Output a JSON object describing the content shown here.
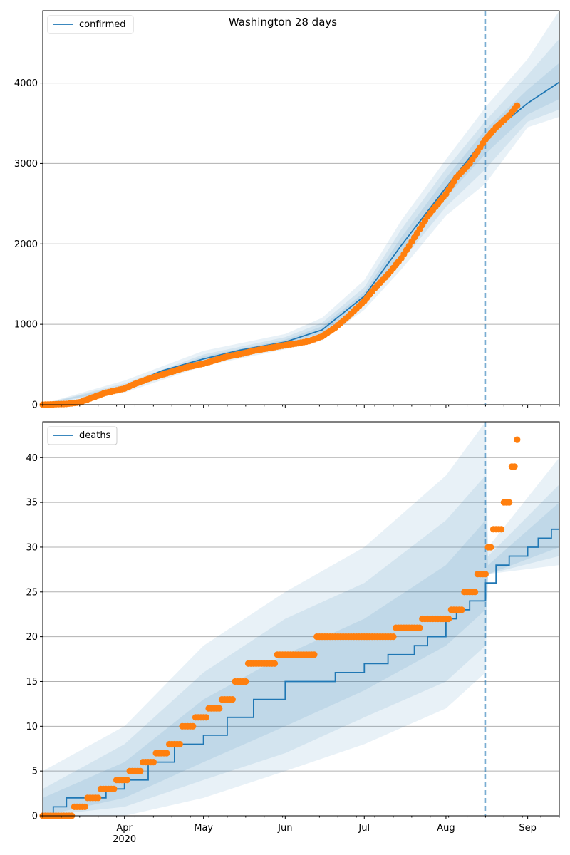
{
  "chart_data": [
    {
      "type": "line",
      "title": "Washington 28 days",
      "x_range": [
        "2020-03-01",
        "2020-09-13"
      ],
      "ylim": [
        0,
        4900
      ],
      "yticks": [
        0,
        1000,
        2000,
        3000,
        4000
      ],
      "grid": "horizontal",
      "legend_placement": "top-left",
      "series": [
        {
          "name": "confirmed",
          "kind": "model-line",
          "color": "#1f77b4",
          "x": [
            "2020-03-01",
            "2020-03-15",
            "2020-04-01",
            "2020-04-15",
            "2020-05-01",
            "2020-05-15",
            "2020-06-01",
            "2020-06-15",
            "2020-07-01",
            "2020-07-15",
            "2020-08-01",
            "2020-08-16",
            "2020-09-01",
            "2020-09-13"
          ],
          "y": [
            5,
            40,
            220,
            420,
            570,
            680,
            780,
            930,
            1350,
            1980,
            2700,
            3320,
            3750,
            4010
          ]
        },
        {
          "kind": "observed",
          "color": "#ff7f0e",
          "x": [
            "2020-03-01",
            "2020-03-10",
            "2020-03-15",
            "2020-03-20",
            "2020-03-25",
            "2020-04-01",
            "2020-04-05",
            "2020-04-10",
            "2020-04-15",
            "2020-04-20",
            "2020-04-25",
            "2020-05-01",
            "2020-05-05",
            "2020-05-10",
            "2020-05-15",
            "2020-05-20",
            "2020-05-25",
            "2020-06-01",
            "2020-06-05",
            "2020-06-10",
            "2020-06-15",
            "2020-06-20",
            "2020-06-25",
            "2020-07-01",
            "2020-07-05",
            "2020-07-10",
            "2020-07-15",
            "2020-07-20",
            "2020-07-25",
            "2020-08-01",
            "2020-08-05",
            "2020-08-10",
            "2020-08-16",
            "2020-08-20",
            "2020-08-25",
            "2020-08-28"
          ],
          "y": [
            0,
            10,
            30,
            90,
            150,
            200,
            260,
            320,
            370,
            420,
            470,
            510,
            550,
            600,
            630,
            670,
            700,
            740,
            760,
            790,
            850,
            960,
            1100,
            1290,
            1450,
            1620,
            1820,
            2080,
            2340,
            2620,
            2830,
            3000,
            3300,
            3450,
            3600,
            3720
          ]
        }
      ],
      "bands": [
        {
          "x": [
            "2020-03-01",
            "2020-04-01",
            "2020-05-01",
            "2020-06-01",
            "2020-06-15",
            "2020-07-01",
            "2020-07-15",
            "2020-08-01",
            "2020-08-16",
            "2020-09-01",
            "2020-09-13"
          ],
          "lower": [
            0,
            150,
            480,
            690,
            800,
            1180,
            1680,
            2350,
            2750,
            3450,
            3580
          ],
          "upper": [
            10,
            300,
            670,
            880,
            1080,
            1550,
            2290,
            3050,
            3700,
            4300,
            4900
          ]
        },
        {
          "x": [
            "2020-03-01",
            "2020-04-01",
            "2020-05-01",
            "2020-06-01",
            "2020-06-15",
            "2020-07-01",
            "2020-07-15",
            "2020-08-01",
            "2020-08-16",
            "2020-09-01",
            "2020-09-13"
          ],
          "lower": [
            2,
            175,
            515,
            725,
            845,
            1240,
            1780,
            2460,
            2930,
            3520,
            3670
          ],
          "upper": [
            8,
            265,
            625,
            840,
            1020,
            1460,
            2180,
            2930,
            3530,
            4100,
            4550
          ]
        },
        {
          "x": [
            "2020-03-01",
            "2020-04-01",
            "2020-05-01",
            "2020-06-01",
            "2020-06-15",
            "2020-07-01",
            "2020-07-15",
            "2020-08-01",
            "2020-08-16",
            "2020-09-01",
            "2020-09-13"
          ],
          "lower": [
            4,
            198,
            545,
            755,
            890,
            1300,
            1880,
            2580,
            3120,
            3610,
            3800
          ],
          "upper": [
            7,
            242,
            600,
            810,
            975,
            1400,
            2080,
            2820,
            3420,
            3920,
            4250
          ]
        }
      ],
      "vline": {
        "x": "2020-08-16",
        "style": "dashed"
      }
    },
    {
      "type": "line",
      "x_range": [
        "2020-03-01",
        "2020-09-13"
      ],
      "ylim": [
        0,
        44
      ],
      "yticks": [
        0,
        5,
        10,
        15,
        20,
        25,
        30,
        35,
        40
      ],
      "xtick_labels": [
        "Apr",
        "May",
        "Jun",
        "Jul",
        "Aug",
        "Sep"
      ],
      "xtick_year": "2020",
      "grid": "horizontal",
      "legend_placement": "top-left",
      "series": [
        {
          "name": "deaths",
          "kind": "model-step",
          "color": "#1f77b4",
          "x": [
            "2020-03-01",
            "2020-03-05",
            "2020-03-10",
            "2020-03-25",
            "2020-04-01",
            "2020-04-10",
            "2020-04-20",
            "2020-05-01",
            "2020-05-10",
            "2020-05-20",
            "2020-06-01",
            "2020-06-10",
            "2020-06-20",
            "2020-07-01",
            "2020-07-10",
            "2020-07-20",
            "2020-07-25",
            "2020-08-01",
            "2020-08-05",
            "2020-08-10",
            "2020-08-16",
            "2020-08-20",
            "2020-08-25",
            "2020-09-01",
            "2020-09-05",
            "2020-09-10",
            "2020-09-13"
          ],
          "y": [
            0,
            1,
            2,
            3,
            4,
            6,
            8,
            9,
            11,
            13,
            15,
            15,
            16,
            17,
            18,
            19,
            20,
            22,
            23,
            24,
            26,
            28,
            29,
            30,
            31,
            32,
            32
          ]
        },
        {
          "kind": "observed",
          "color": "#ff7f0e",
          "x": [
            "2020-03-01",
            "2020-03-10",
            "2020-03-15",
            "2020-03-20",
            "2020-03-25",
            "2020-04-01",
            "2020-04-05",
            "2020-04-10",
            "2020-04-15",
            "2020-04-20",
            "2020-04-25",
            "2020-05-01",
            "2020-05-05",
            "2020-05-10",
            "2020-05-15",
            "2020-05-20",
            "2020-05-25",
            "2020-06-01",
            "2020-06-05",
            "2020-06-10",
            "2020-06-15",
            "2020-06-20",
            "2020-06-25",
            "2020-07-01",
            "2020-07-05",
            "2020-07-10",
            "2020-07-15",
            "2020-07-20",
            "2020-07-25",
            "2020-08-01",
            "2020-08-05",
            "2020-08-10",
            "2020-08-16",
            "2020-08-18",
            "2020-08-20",
            "2020-08-25",
            "2020-08-27",
            "2020-08-28"
          ],
          "y": [
            0,
            0,
            1,
            2,
            3,
            4,
            5,
            6,
            7,
            8,
            10,
            11,
            12,
            13,
            15,
            17,
            17,
            18,
            18,
            18,
            20,
            20,
            20,
            20,
            20,
            20,
            21,
            21,
            22,
            22,
            23,
            25,
            27,
            30,
            32,
            35,
            39,
            42
          ]
        }
      ],
      "bands": [
        {
          "x": [
            "2020-03-01",
            "2020-04-01",
            "2020-05-01",
            "2020-06-01",
            "2020-07-01",
            "2020-08-01",
            "2020-08-16",
            "2020-08-17",
            "2020-09-13"
          ],
          "lower": [
            0,
            0,
            2,
            5,
            8,
            12,
            16,
            27,
            28
          ],
          "upper": [
            5,
            10,
            19,
            25,
            30,
            38,
            44,
            30,
            40
          ]
        },
        {
          "x": [
            "2020-03-01",
            "2020-04-01",
            "2020-05-01",
            "2020-06-01",
            "2020-07-01",
            "2020-08-01",
            "2020-08-16",
            "2020-08-17",
            "2020-09-13"
          ],
          "lower": [
            0,
            1,
            4,
            7,
            11,
            15,
            19,
            27,
            29
          ],
          "upper": [
            3,
            8,
            16,
            22,
            26,
            33,
            38,
            29,
            37
          ]
        },
        {
          "x": [
            "2020-03-01",
            "2020-04-01",
            "2020-05-01",
            "2020-06-01",
            "2020-07-01",
            "2020-08-01",
            "2020-08-16",
            "2020-08-17",
            "2020-09-13"
          ],
          "lower": [
            0,
            2,
            6,
            10,
            14,
            19,
            23,
            27,
            30
          ],
          "upper": [
            2,
            6,
            13,
            18,
            22,
            28,
            33,
            28,
            35
          ]
        }
      ],
      "vline": {
        "x": "2020-08-16",
        "style": "dashed"
      }
    }
  ],
  "colors": {
    "model": "#1f77b4",
    "observed": "#ff7f0e",
    "band": "#1f77b4",
    "grid": "#b0b0b0"
  }
}
